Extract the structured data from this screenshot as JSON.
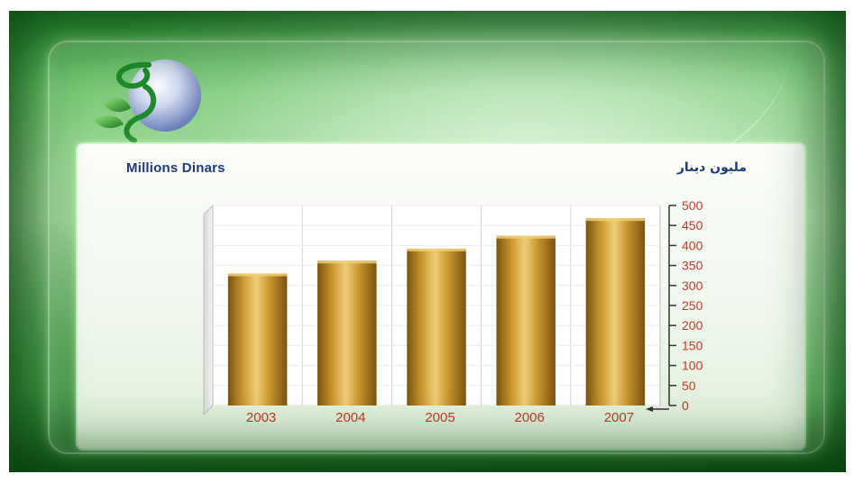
{
  "chart_data": {
    "type": "bar",
    "title_left": "Millions Dinars",
    "title_right": "مليون دينار",
    "categories": [
      "2003",
      "2004",
      "2005",
      "2006",
      "2007"
    ],
    "values": [
      330,
      362,
      392,
      424,
      468
    ],
    "ylim": [
      0,
      500
    ],
    "yticks": [
      "0",
      "50",
      "100",
      "150",
      "200",
      "250",
      "300",
      "350",
      "400",
      "450",
      "500"
    ],
    "grid": true,
    "y_axis_side": "right",
    "colors": {
      "bar_dark": "#7a5410",
      "bar_mid": "#c9962e",
      "bar_light": "#f0cf78",
      "tick_label": "#c0392b",
      "title": "#1f3a7a",
      "grid": "#d4d4d4"
    }
  }
}
